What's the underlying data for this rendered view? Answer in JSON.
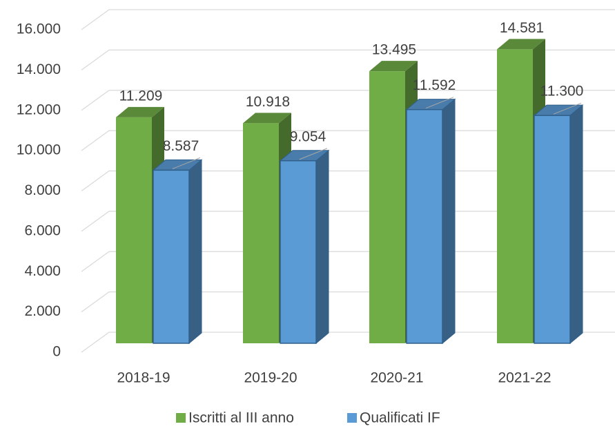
{
  "chart_data": {
    "type": "bar3d",
    "categories": [
      "2018-19",
      "2019-20",
      "2020-21",
      "2021-22"
    ],
    "series": [
      {
        "name": "Iscritti al III anno",
        "color": "#70ad47",
        "values": [
          11209,
          10918,
          13495,
          14581
        ],
        "value_labels": [
          "11.209",
          "10.918",
          "13.495",
          "14.581"
        ]
      },
      {
        "name": "Qualificati IF",
        "color": "#5b9bd5",
        "values": [
          8587,
          9054,
          11592,
          11300
        ],
        "value_labels": [
          "8.587",
          "9.054",
          "11.592",
          "11.300"
        ]
      }
    ],
    "ylim": [
      0,
      16000
    ],
    "yticks": [
      {
        "value": 0,
        "label": "0"
      },
      {
        "value": 2000,
        "label": "2.000"
      },
      {
        "value": 4000,
        "label": "4.000"
      },
      {
        "value": 6000,
        "label": "6.000"
      },
      {
        "value": 8000,
        "label": "8.000"
      },
      {
        "value": 10000,
        "label": "10.000"
      },
      {
        "value": 12000,
        "label": "12.000"
      },
      {
        "value": 14000,
        "label": "14.000"
      },
      {
        "value": 16000,
        "label": "16.000"
      }
    ],
    "grid": true,
    "legend": "bottom"
  }
}
